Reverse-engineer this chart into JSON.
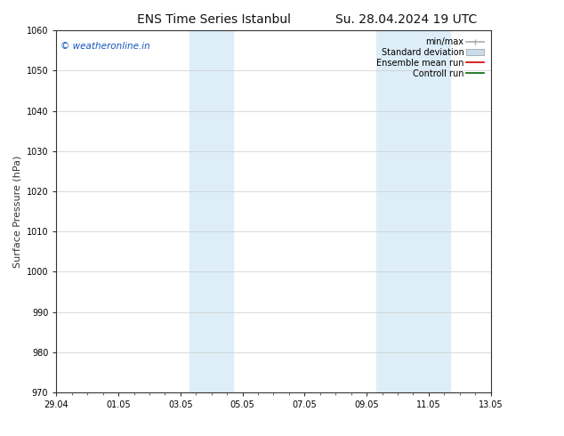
{
  "title_left": "ENS Time Series Istanbul",
  "title_right": "Su. 28.04.2024 19 UTC",
  "ylabel": "Surface Pressure (hPa)",
  "ylim": [
    970,
    1060
  ],
  "yticks": [
    970,
    980,
    990,
    1000,
    1010,
    1020,
    1030,
    1040,
    1050,
    1060
  ],
  "xtick_labels": [
    "29.04",
    "01.05",
    "03.05",
    "05.05",
    "07.05",
    "09.05",
    "11.05",
    "13.05"
  ],
  "xtick_positions": [
    0,
    2,
    4,
    6,
    8,
    10,
    12,
    14
  ],
  "xlim": [
    0,
    14
  ],
  "shaded_bands": [
    {
      "x_start": 4.3,
      "x_end": 5.7
    },
    {
      "x_start": 10.3,
      "x_end": 12.7
    }
  ],
  "shaded_color": "#ddeef8",
  "watermark_text": "© weatheronline.in",
  "watermark_color": "#1155bb",
  "legend_items": [
    {
      "label": "min/max",
      "color": "#aaaaaa",
      "type": "errorbar"
    },
    {
      "label": "Standard deviation",
      "color": "#c8dcea",
      "type": "fill"
    },
    {
      "label": "Ensemble mean run",
      "color": "#cc0000",
      "type": "line"
    },
    {
      "label": "Controll run",
      "color": "#006600",
      "type": "line"
    }
  ],
  "bg_color": "#ffffff",
  "spine_color": "#333333",
  "tick_color": "#333333",
  "title_fontsize": 10,
  "tick_fontsize": 7,
  "ylabel_fontsize": 8,
  "legend_fontsize": 7
}
